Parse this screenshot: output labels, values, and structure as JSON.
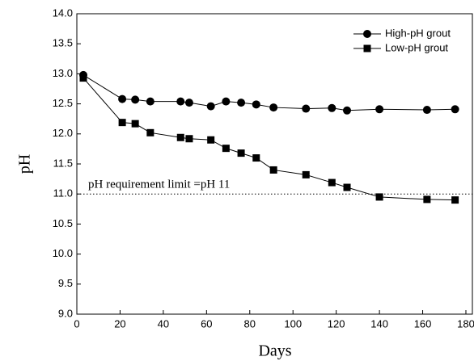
{
  "chart_data": {
    "type": "line",
    "x_label": "Days",
    "y_label": "pH",
    "xlim": [
      0,
      183
    ],
    "xticks": [
      0,
      20,
      40,
      60,
      80,
      100,
      120,
      140,
      160,
      180
    ],
    "ylim": [
      9,
      14
    ],
    "yticks": [
      {
        "value": 9,
        "label": "9.0"
      },
      {
        "value": 9.5,
        "label": "9.5"
      },
      {
        "value": 10,
        "label": "10.0"
      },
      {
        "value": 10.5,
        "label": "10.5"
      },
      {
        "value": 11,
        "label": "11.0"
      },
      {
        "value": 11.5,
        "label": "11.5"
      },
      {
        "value": 12,
        "label": "12.0"
      },
      {
        "value": 12.5,
        "label": "12.5"
      },
      {
        "value": 13,
        "label": "13.0"
      },
      {
        "value": 13.5,
        "label": "13.5"
      },
      {
        "value": 14,
        "label": "14.0"
      }
    ],
    "legend": "top-right",
    "reference_line": {
      "value": 11,
      "label": "pH requirement limit =pH 11"
    },
    "series": [
      {
        "name": "High-pH grout",
        "color": "#000000",
        "marker": "circle",
        "x": [
          3,
          21,
          27,
          34,
          48,
          52,
          62,
          69,
          76,
          83,
          91,
          106,
          118,
          125,
          140,
          162,
          175
        ],
        "values": [
          12.98,
          12.58,
          12.57,
          12.54,
          12.54,
          12.52,
          12.46,
          12.54,
          12.52,
          12.49,
          12.44,
          12.42,
          12.43,
          12.39,
          12.41,
          12.4,
          12.41
        ]
      },
      {
        "name": "Low-pH grout",
        "color": "#000000",
        "marker": "square",
        "x": [
          3,
          21,
          27,
          34,
          48,
          52,
          62,
          69,
          76,
          83,
          91,
          106,
          118,
          125,
          140,
          162,
          175
        ],
        "values": [
          12.93,
          12.19,
          12.17,
          12.02,
          11.94,
          11.92,
          11.9,
          11.76,
          11.68,
          11.6,
          11.4,
          11.32,
          11.19,
          11.11,
          10.95,
          10.91,
          10.9
        ]
      }
    ]
  }
}
